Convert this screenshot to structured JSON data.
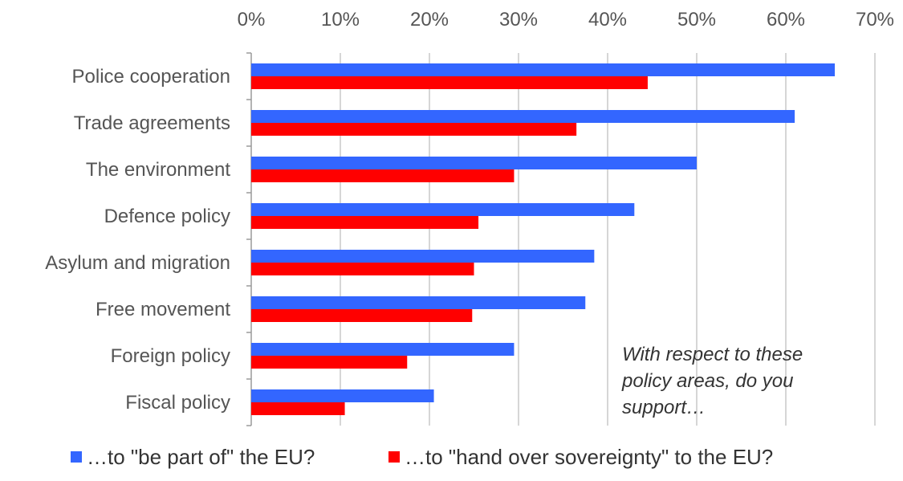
{
  "chart_data": {
    "type": "bar",
    "orientation": "horizontal",
    "categories": [
      "Police cooperation",
      "Trade agreements",
      "The environment",
      "Defence policy",
      "Asylum and migration",
      "Free movement",
      "Foreign policy",
      "Fiscal policy"
    ],
    "series": [
      {
        "name": "…to \"be part of\" the EU?",
        "color": "#3366ff",
        "values": [
          65.5,
          61,
          50,
          43,
          38.5,
          37.5,
          29.5,
          20.5
        ]
      },
      {
        "name": "…to \"hand over sovereignty\" to the EU?",
        "color": "#ff0000",
        "values": [
          44.5,
          36.5,
          29.5,
          25.5,
          25,
          24.8,
          17.5,
          10.5
        ]
      }
    ],
    "xlim": [
      0,
      70
    ],
    "x_ticks": [
      "0%",
      "10%",
      "20%",
      "30%",
      "40%",
      "50%",
      "60%",
      "70%"
    ],
    "x_tick_values": [
      0,
      10,
      20,
      30,
      40,
      50,
      60,
      70
    ],
    "x_axis_position": "top",
    "grid": true,
    "legend_position": "bottom",
    "annotation": [
      "With respect to these",
      "policy areas, do you",
      "support…"
    ]
  }
}
